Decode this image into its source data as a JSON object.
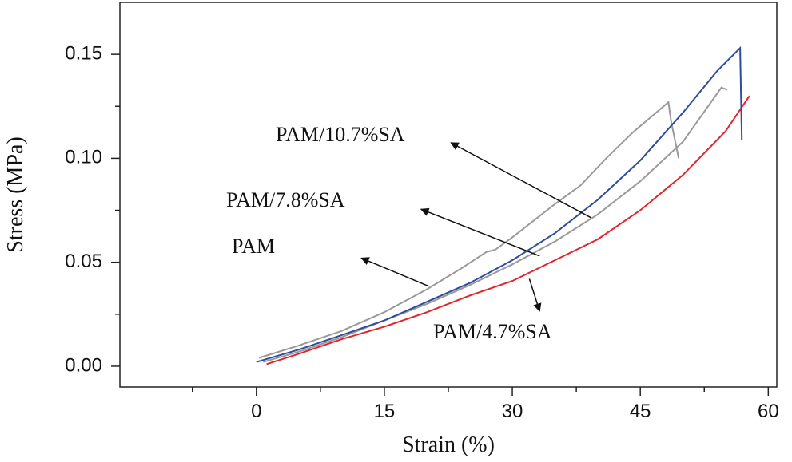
{
  "chart_data": {
    "type": "line",
    "title": "",
    "xlabel": "Strain (%)",
    "ylabel": "Stress (MPa)",
    "xlim": [
      -16,
      61
    ],
    "ylim": [
      -0.01,
      0.175
    ],
    "xticks": [
      0,
      15,
      30,
      45,
      60
    ],
    "yticks": [
      0.0,
      0.05,
      0.1,
      0.15
    ],
    "xtick_labels": [
      "0",
      "15",
      "30",
      "45",
      "60"
    ],
    "ytick_labels": [
      "0.00",
      "0.05",
      "0.10",
      "0.15"
    ],
    "grid": false,
    "series": [
      {
        "name": "PAM",
        "color": "#9a9a9a",
        "points": [
          [
            0.3,
            0.004
          ],
          [
            5,
            0.01
          ],
          [
            10,
            0.017
          ],
          [
            15,
            0.026
          ],
          [
            20,
            0.037
          ],
          [
            24,
            0.047
          ],
          [
            27,
            0.055
          ],
          [
            28,
            0.056
          ],
          [
            30,
            0.062
          ],
          [
            35,
            0.078
          ],
          [
            38,
            0.087
          ],
          [
            41,
            0.1
          ],
          [
            44,
            0.112
          ],
          [
            48.3,
            0.127
          ],
          [
            48.6,
            0.118
          ],
          [
            49.5,
            0.1
          ]
        ]
      },
      {
        "name": "PAM/4.7%SA",
        "color": "#e0252a",
        "points": [
          [
            1.2,
            0.001
          ],
          [
            5,
            0.006
          ],
          [
            10,
            0.013
          ],
          [
            15,
            0.019
          ],
          [
            20,
            0.026
          ],
          [
            25,
            0.034
          ],
          [
            30,
            0.041
          ],
          [
            35,
            0.051
          ],
          [
            40,
            0.061
          ],
          [
            45,
            0.075
          ],
          [
            50,
            0.092
          ],
          [
            55,
            0.113
          ],
          [
            57.8,
            0.13
          ]
        ]
      },
      {
        "name": "PAM/7.8%SA",
        "color": "#9a9a9a",
        "points": [
          [
            0.8,
            0.002
          ],
          [
            5,
            0.007
          ],
          [
            10,
            0.014
          ],
          [
            15,
            0.022
          ],
          [
            20,
            0.03
          ],
          [
            25,
            0.039
          ],
          [
            30,
            0.049
          ],
          [
            35,
            0.06
          ],
          [
            40,
            0.073
          ],
          [
            45,
            0.089
          ],
          [
            50,
            0.108
          ],
          [
            54.5,
            0.134
          ],
          [
            55.2,
            0.133
          ]
        ]
      },
      {
        "name": "PAM/10.7%SA",
        "color": "#2e4d9a",
        "points": [
          [
            0,
            0.002
          ],
          [
            5,
            0.008
          ],
          [
            10,
            0.015
          ],
          [
            15,
            0.022
          ],
          [
            20,
            0.031
          ],
          [
            25,
            0.04
          ],
          [
            30,
            0.051
          ],
          [
            35,
            0.064
          ],
          [
            40,
            0.08
          ],
          [
            45,
            0.099
          ],
          [
            50,
            0.122
          ],
          [
            54,
            0.142
          ],
          [
            56.7,
            0.153
          ],
          [
            56.9,
            0.109
          ]
        ]
      }
    ],
    "annotations": [
      {
        "text": "PAM/10.7%SA",
        "tip": [
          22.8,
          0.1075
        ],
        "tail": [
          39.2,
          0.0715
        ]
      },
      {
        "text": "PAM/7.8%SA",
        "tip": [
          19.3,
          0.0755
        ],
        "tail": [
          33.2,
          0.053
        ]
      },
      {
        "text": "PAM",
        "tip": [
          12.3,
          0.052
        ],
        "tail": [
          20.2,
          0.0385
        ]
      },
      {
        "text": "PAM/4.7%SA",
        "tip": [
          33.2,
          0.0265
        ],
        "tail": [
          32.0,
          0.042
        ]
      }
    ]
  }
}
